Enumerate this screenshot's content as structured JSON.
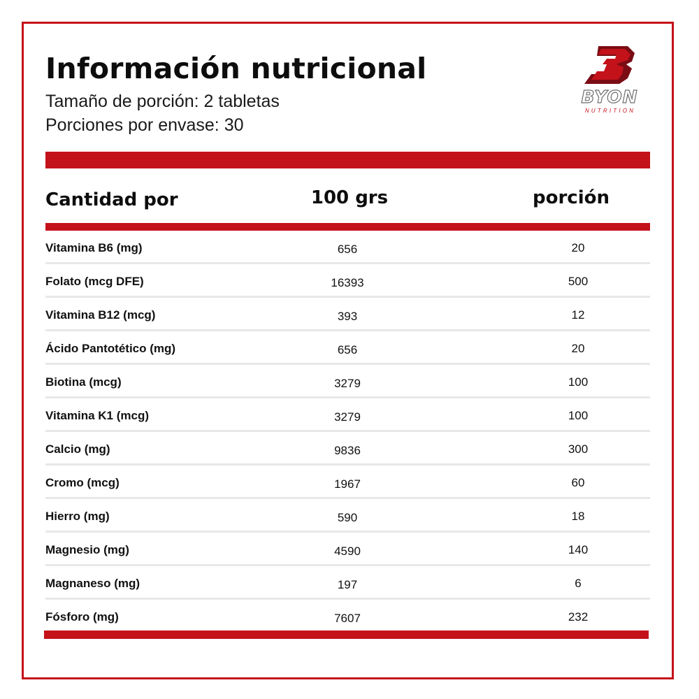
{
  "header": {
    "title": "Información nutricional",
    "serving_size": "Tamaño de porción: 2 tabletas",
    "servings_per_container": "Porciones por envase: 30"
  },
  "brand": {
    "logo_icon": "byon-b-logo-icon",
    "name": "BYON",
    "tagline": "NUTRITION",
    "accent_color": "#c4121a",
    "dark_red": "#7a0c14"
  },
  "table": {
    "columns": [
      "Cantidad por",
      "100 grs",
      "porción"
    ],
    "rows": [
      {
        "name": "Vitamina B6 (mg)",
        "per_100g": "656",
        "per_serving": "20"
      },
      {
        "name": "Folato (mcg DFE)",
        "per_100g": "16393",
        "per_serving": "500"
      },
      {
        "name": "Vitamina B12 (mcg)",
        "per_100g": "393",
        "per_serving": "12"
      },
      {
        "name": "Ácido Pantotético (mg)",
        "per_100g": "656",
        "per_serving": "20"
      },
      {
        "name": "Biotina (mcg)",
        "per_100g": "3279",
        "per_serving": "100"
      },
      {
        "name": "Vitamina K1 (mcg)",
        "per_100g": "3279",
        "per_serving": "100"
      },
      {
        "name": "Calcio (mg)",
        "per_100g": "9836",
        "per_serving": "300"
      },
      {
        "name": "Cromo (mcg)",
        "per_100g": "1967",
        "per_serving": "60"
      },
      {
        "name": "Hierro (mg)",
        "per_100g": "590",
        "per_serving": "18"
      },
      {
        "name": "Magnesio (mg)",
        "per_100g": "4590",
        "per_serving": "140"
      },
      {
        "name": "Magnaneso (mg)",
        "per_100g": "197",
        "per_serving": "6"
      },
      {
        "name": "Fósforo (mg)",
        "per_100g": "7607",
        "per_serving": "232"
      }
    ]
  }
}
